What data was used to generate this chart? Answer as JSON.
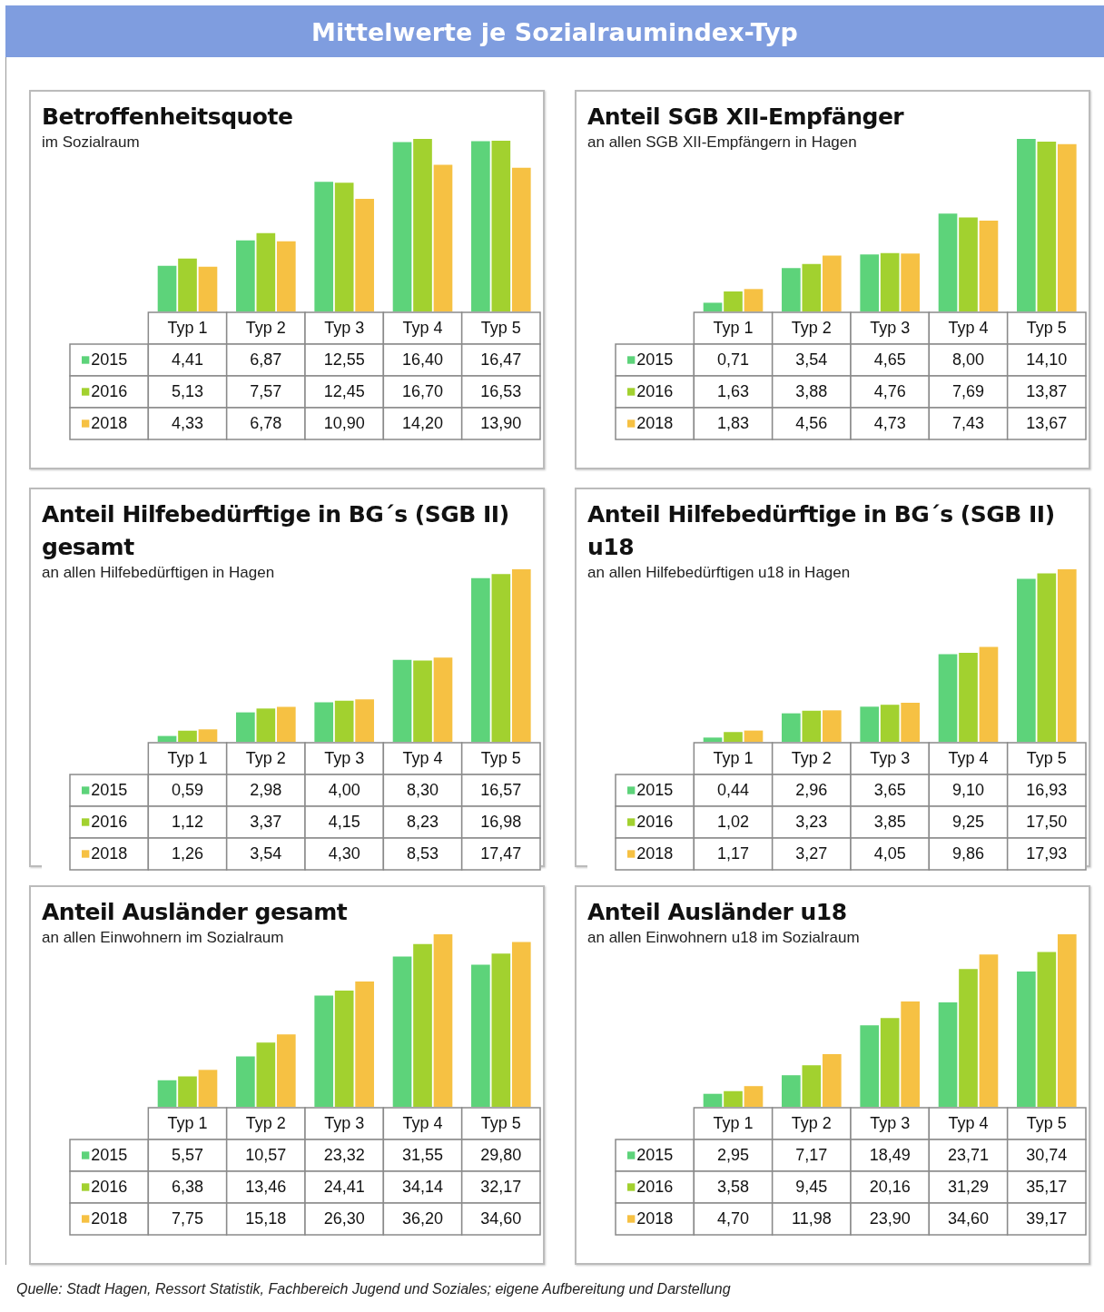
{
  "chart_data": [
    {
      "type": "bar",
      "title": "Betroffenheitsquote",
      "subtitle": "im Sozialraum",
      "annotations": [
        "Mittelwerte je Sozialraumindex-Typ"
      ],
      "legend": "bottom",
      "categories": [
        "Typ 1",
        "Typ 2",
        "Typ 3",
        "Typ 4",
        "Typ 5"
      ],
      "series": [
        {
          "name": "2015",
          "color": "#5dd37a",
          "values": [
            4.41,
            6.87,
            12.55,
            16.4,
            16.47
          ],
          "value_labels": [
            "4,41",
            "6,87",
            "12,55",
            "16,40",
            "16,47"
          ]
        },
        {
          "name": "2016",
          "color": "#a2d12f",
          "values": [
            5.13,
            7.57,
            12.45,
            16.7,
            16.53
          ],
          "value_labels": [
            "5,13",
            "7,57",
            "12,45",
            "16,70",
            "16,53"
          ]
        },
        {
          "name": "2018",
          "color": "#f6c143",
          "values": [
            4.33,
            6.78,
            10.9,
            14.2,
            13.9
          ],
          "value_labels": [
            "4,33",
            "6,78",
            "10,90",
            "14,20",
            "13,90"
          ]
        }
      ]
    },
    {
      "type": "bar",
      "title": "Anteil SGB XII-Empfänger",
      "subtitle": "an allen SGB XII-Empfängern in Hagen",
      "legend": "bottom",
      "categories": [
        "Typ 1",
        "Typ 2",
        "Typ 3",
        "Typ 4",
        "Typ 5"
      ],
      "series": [
        {
          "name": "2015",
          "color": "#5dd37a",
          "values": [
            0.71,
            3.54,
            4.65,
            8.0,
            14.1
          ],
          "value_labels": [
            "0,71",
            "3,54",
            "4,65",
            "8,00",
            "14,10"
          ]
        },
        {
          "name": "2016",
          "color": "#a2d12f",
          "values": [
            1.63,
            3.88,
            4.76,
            7.69,
            13.87
          ],
          "value_labels": [
            "1,63",
            "3,88",
            "4,76",
            "7,69",
            "13,87"
          ]
        },
        {
          "name": "2018",
          "color": "#f6c143",
          "values": [
            1.83,
            4.56,
            4.73,
            7.43,
            13.67
          ],
          "value_labels": [
            "1,83",
            "4,56",
            "4,73",
            "7,43",
            "13,67"
          ]
        }
      ]
    },
    {
      "type": "bar",
      "title": "Anteil Hilfebedürftige in BG´s (SGB II) gesamt",
      "subtitle": "an allen Hilfebedürftigen in Hagen",
      "legend": "bottom",
      "categories": [
        "Typ 1",
        "Typ 2",
        "Typ 3",
        "Typ 4",
        "Typ 5"
      ],
      "series": [
        {
          "name": "2015",
          "color": "#5dd37a",
          "values": [
            0.59,
            2.98,
            4.0,
            8.3,
            16.57
          ],
          "value_labels": [
            "0,59",
            "2,98",
            "4,00",
            "8,30",
            "16,57"
          ]
        },
        {
          "name": "2016",
          "color": "#a2d12f",
          "values": [
            1.12,
            3.37,
            4.15,
            8.23,
            16.98
          ],
          "value_labels": [
            "1,12",
            "3,37",
            "4,15",
            "8,23",
            "16,98"
          ]
        },
        {
          "name": "2018",
          "color": "#f6c143",
          "values": [
            1.26,
            3.54,
            4.3,
            8.53,
            17.47
          ],
          "value_labels": [
            "1,26",
            "3,54",
            "4,30",
            "8,53",
            "17,47"
          ]
        }
      ]
    },
    {
      "type": "bar",
      "title": "Anteil Hilfebedürftige in BG´s (SGB II) u18",
      "subtitle": "an allen Hilfebedürftigen u18 in Hagen",
      "legend": "bottom",
      "categories": [
        "Typ 1",
        "Typ 2",
        "Typ 3",
        "Typ 4",
        "Typ 5"
      ],
      "series": [
        {
          "name": "2015",
          "color": "#5dd37a",
          "values": [
            0.44,
            2.96,
            3.65,
            9.1,
            16.93
          ],
          "value_labels": [
            "0,44",
            "2,96",
            "3,65",
            "9,10",
            "16,93"
          ]
        },
        {
          "name": "2016",
          "color": "#a2d12f",
          "values": [
            1.02,
            3.23,
            3.85,
            9.25,
            17.5
          ],
          "value_labels": [
            "1,02",
            "3,23",
            "3,85",
            "9,25",
            "17,50"
          ]
        },
        {
          "name": "2018",
          "color": "#f6c143",
          "values": [
            1.17,
            3.27,
            4.05,
            9.86,
            17.93
          ],
          "value_labels": [
            "1,17",
            "3,27",
            "4,05",
            "9,86",
            "17,93"
          ]
        }
      ]
    },
    {
      "type": "bar",
      "title": "Anteil Ausländer gesamt",
      "subtitle": "an allen Einwohnern im Sozialraum",
      "legend": "bottom",
      "categories": [
        "Typ 1",
        "Typ 2",
        "Typ 3",
        "Typ 4",
        "Typ 5"
      ],
      "series": [
        {
          "name": "2015",
          "color": "#5dd37a",
          "values": [
            5.57,
            10.57,
            23.32,
            31.55,
            29.8
          ],
          "value_labels": [
            "5,57",
            "10,57",
            "23,32",
            "31,55",
            "29,80"
          ]
        },
        {
          "name": "2016",
          "color": "#a2d12f",
          "values": [
            6.38,
            13.46,
            24.41,
            34.14,
            32.17
          ],
          "value_labels": [
            "6,38",
            "13,46",
            "24,41",
            "34,14",
            "32,17"
          ]
        },
        {
          "name": "2018",
          "color": "#f6c143",
          "values": [
            7.75,
            15.18,
            26.3,
            36.2,
            34.6
          ],
          "value_labels": [
            "7,75",
            "15,18",
            "26,30",
            "36,20",
            "34,60"
          ]
        }
      ]
    },
    {
      "type": "bar",
      "title": "Anteil Ausländer u18",
      "subtitle": "an allen Einwohnern u18 im Sozialraum",
      "annotations": [
        "Quelle: Stadt Hagen, Ressort Statistik, Fachbereich Jugend und Soziales; eigene Aufbereitung und Darstellung"
      ],
      "legend": "bottom",
      "categories": [
        "Typ 1",
        "Typ 2",
        "Typ 3",
        "Typ 4",
        "Typ 5"
      ],
      "series": [
        {
          "name": "2015",
          "color": "#5dd37a",
          "values": [
            2.95,
            7.17,
            18.49,
            23.71,
            30.74
          ],
          "value_labels": [
            "2,95",
            "7,17",
            "18,49",
            "23,71",
            "30,74"
          ]
        },
        {
          "name": "2016",
          "color": "#a2d12f",
          "values": [
            3.58,
            9.45,
            20.16,
            31.29,
            35.17
          ],
          "value_labels": [
            "3,58",
            "9,45",
            "20,16",
            "31,29",
            "35,17"
          ]
        },
        {
          "name": "2018",
          "color": "#f6c143",
          "values": [
            4.7,
            11.98,
            23.9,
            34.6,
            39.17
          ],
          "value_labels": [
            "4,70",
            "11,98",
            "23,90",
            "34,60",
            "39,17"
          ]
        }
      ]
    }
  ]
}
